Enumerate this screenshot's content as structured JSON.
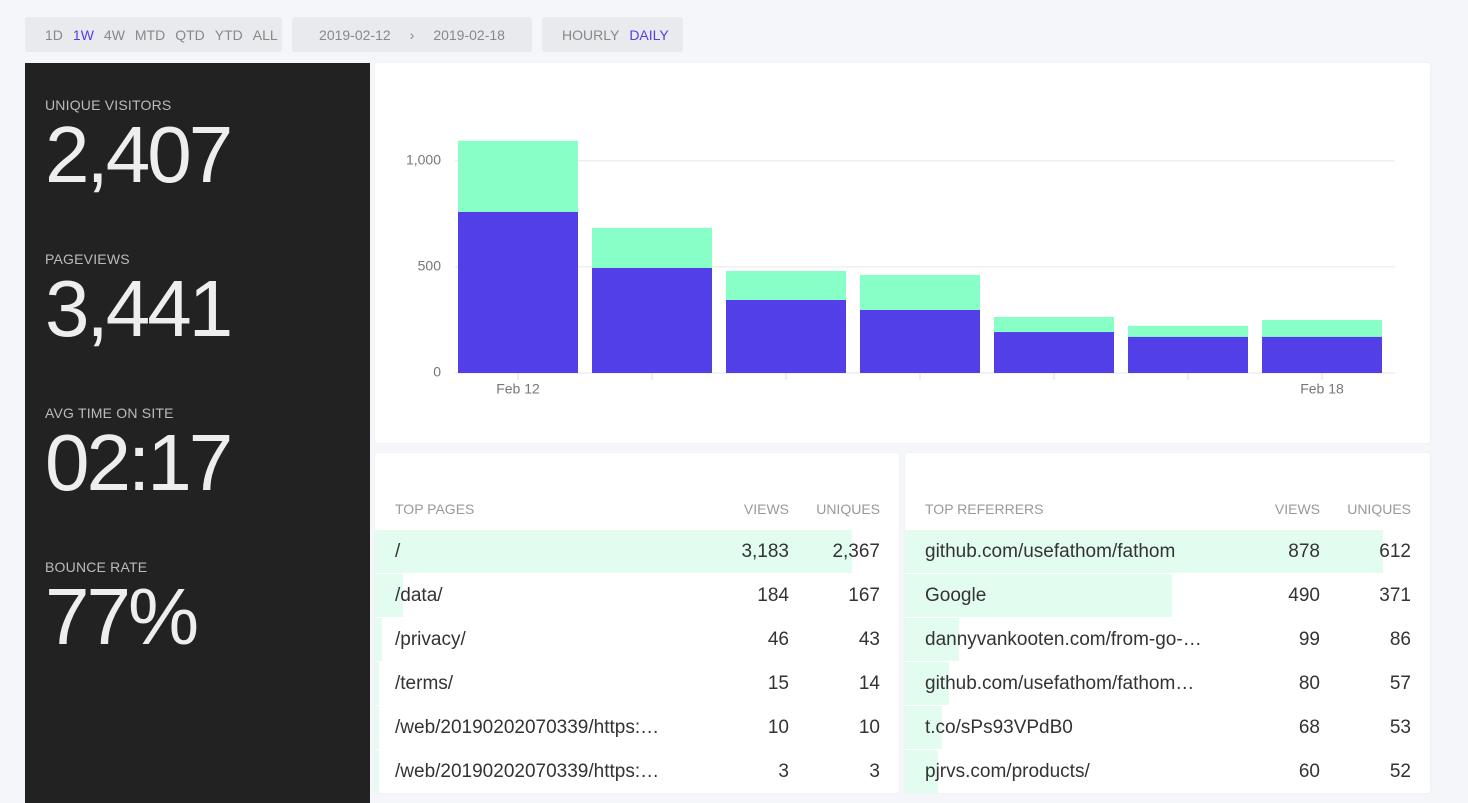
{
  "toolbar": {
    "periods": [
      "1D",
      "1W",
      "4W",
      "MTD",
      "QTD",
      "YTD",
      "ALL"
    ],
    "active_period": 1,
    "date_start": "2019-02-12",
    "date_separator": "›",
    "date_end": "2019-02-18",
    "granularity": [
      "HOURLY",
      "DAILY"
    ],
    "active_granularity": 1
  },
  "stats": [
    {
      "label": "UNIQUE VISITORS",
      "value": "2,407"
    },
    {
      "label": "PAGEVIEWS",
      "value": "3,441"
    },
    {
      "label": "AVG TIME ON SITE",
      "value": "02:17"
    },
    {
      "label": "BOUNCE RATE",
      "value": "77%"
    }
  ],
  "chart_data": {
    "type": "bar",
    "overlap": true,
    "categories": [
      "Feb 12",
      null,
      null,
      null,
      null,
      null,
      "Feb 18"
    ],
    "series": [
      {
        "color": "#88ffc6",
        "values": [
          1094,
          684,
          481,
          462,
          264,
          222,
          250
        ]
      },
      {
        "color": "#533fe8",
        "values": [
          759,
          495,
          344,
          297,
          193,
          170,
          170
        ]
      }
    ],
    "ylim": [
      0,
      1150
    ],
    "yticks": [
      0,
      500,
      {
        "value": 1000,
        "label": "1,000"
      }
    ],
    "grid": true
  },
  "top_pages": {
    "title": "TOP PAGES",
    "col_views": "VIEWS",
    "col_uniques": "UNIQUES",
    "rows": [
      {
        "name": "/",
        "views": {
          "value": 3183,
          "label": "3,183"
        },
        "uniques": {
          "value": 2367,
          "label": "2,367"
        }
      },
      {
        "name": "/data/",
        "views": 184,
        "uniques": 167
      },
      {
        "name": "/privacy/",
        "views": 46,
        "uniques": 43
      },
      {
        "name": "/terms/",
        "views": 15,
        "uniques": 14
      },
      {
        "name": "/web/20190202070339/https:…",
        "views": 10,
        "uniques": 10
      },
      {
        "name": "/web/20190202070339/https:…",
        "views": 3,
        "uniques": 3
      }
    ]
  },
  "top_referrers": {
    "title": "TOP REFERRERS",
    "col_views": "VIEWS",
    "col_uniques": "UNIQUES",
    "rows": [
      {
        "name": "github.com/usefathom/fathom",
        "views": 878,
        "uniques": 612
      },
      {
        "name": "Google",
        "views": 490,
        "uniques": 371
      },
      {
        "name": "dannyvankooten.com/from-go-…",
        "views": 99,
        "uniques": 86
      },
      {
        "name": "github.com/usefathom/fathom…",
        "views": 80,
        "uniques": 57
      },
      {
        "name": "t.co/sPs93VPdB0",
        "views": 68,
        "uniques": 53
      },
      {
        "name": "pjrvs.com/products/",
        "views": 60,
        "uniques": 52
      }
    ]
  }
}
